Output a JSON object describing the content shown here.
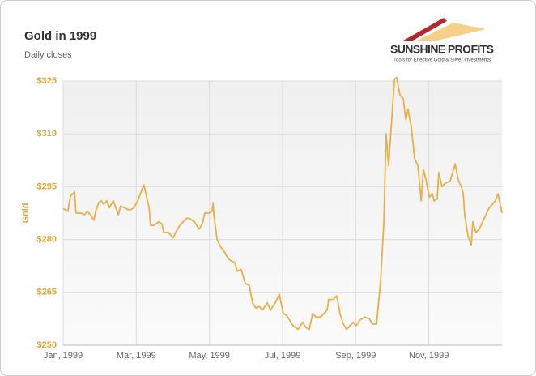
{
  "logo": {
    "name": "SUNSHINE PROFITS",
    "tagline": "Tools for Effective Gold & Silver Investments"
  },
  "chart_data": {
    "type": "line",
    "title": "Gold in 1999",
    "subtitle": "Daily closes",
    "y_label": "Gold",
    "x": [
      0,
      0.13,
      0.2,
      0.31,
      0.35,
      0.49,
      0.58,
      0.66,
      0.75,
      0.84,
      0.89,
      0.97,
      1.04,
      1.11,
      1.2,
      1.26,
      1.37,
      1.51,
      1.57,
      1.68,
      1.77,
      1.86,
      1.93,
      2.04,
      2.15,
      2.21,
      2.35,
      2.39,
      2.48,
      2.61,
      2.7,
      2.75,
      2.88,
      3.01,
      3.1,
      3.19,
      3.28,
      3.37,
      3.45,
      3.59,
      3.72,
      3.81,
      3.87,
      3.99,
      4.07,
      4.1,
      4.12,
      4.21,
      4.3,
      4.38,
      4.49,
      4.58,
      4.69,
      4.76,
      4.87,
      4.98,
      5.09,
      5.18,
      5.27,
      5.36,
      5.45,
      5.58,
      5.67,
      5.8,
      5.91,
      6.02,
      6.11,
      6.2,
      6.29,
      6.42,
      6.55,
      6.64,
      6.73,
      6.82,
      6.91,
      7.04,
      7.13,
      7.22,
      7.26,
      7.39,
      7.48,
      7.57,
      7.66,
      7.75,
      7.84,
      7.93,
      8.01,
      8.1,
      8.24,
      8.37,
      8.46,
      8.57,
      8.68,
      8.77,
      8.83,
      8.9,
      8.99,
      9.06,
      9.12,
      9.21,
      9.3,
      9.37,
      9.43,
      9.52,
      9.61,
      9.7,
      9.79,
      9.85,
      9.92,
      10.01,
      10.1,
      10.14,
      10.23,
      10.27,
      10.36,
      10.45,
      10.58,
      10.72,
      10.8,
      10.89,
      10.94,
      10.98,
      11.07,
      11.16,
      11.2,
      11.29,
      11.38,
      11.47,
      11.56,
      11.65,
      11.74,
      11.82,
      11.89,
      12.0
    ],
    "series": [
      {
        "name": "Gold",
        "color": "#e8b04a",
        "values": [
          288.8,
          288,
          292.3,
          293.5,
          287.5,
          287.5,
          287,
          288,
          287,
          285.5,
          288,
          290.5,
          291,
          290,
          291,
          289,
          291,
          287,
          289.5,
          289,
          288.5,
          288.5,
          289,
          291,
          294,
          295.5,
          289,
          284,
          284,
          285,
          284.5,
          282,
          282,
          280.5,
          282.5,
          284,
          285,
          286,
          286,
          285,
          283,
          284.5,
          287.5,
          287.5,
          288,
          290.5,
          287,
          280,
          278,
          277,
          275,
          274,
          273.5,
          271,
          271.5,
          267.5,
          267,
          262,
          260.5,
          261,
          260,
          262,
          260,
          262,
          264.5,
          259,
          258.5,
          257,
          255.5,
          254.5,
          256.5,
          255,
          254.5,
          259,
          258,
          258,
          259,
          260,
          263,
          263,
          264,
          259,
          256,
          254.5,
          255.5,
          256.5,
          255.5,
          257,
          258,
          257.5,
          256,
          256,
          268,
          285,
          310,
          301,
          315,
          325.5,
          326,
          321,
          320,
          314,
          317,
          312,
          303,
          301,
          291,
          300,
          297,
          292,
          293,
          291,
          291.5,
          299,
          295,
          296,
          296.5,
          301.5,
          297,
          295,
          293,
          287,
          281,
          278.5,
          285,
          282,
          283,
          285,
          287,
          289,
          290,
          291,
          293,
          287.5
        ]
      }
    ],
    "xlim": [
      0,
      12
    ],
    "xticks": [
      {
        "value": 0,
        "label": "Jan, 1999"
      },
      {
        "value": 2,
        "label": "Mar, 1999"
      },
      {
        "value": 4,
        "label": "May, 1999"
      },
      {
        "value": 6,
        "label": "Jul, 1999"
      },
      {
        "value": 8,
        "label": "Sep, 1999"
      },
      {
        "value": 10,
        "label": "Nov, 1999"
      }
    ],
    "ylim": [
      250,
      325
    ],
    "yticks": [
      {
        "value": 250,
        "label": "$250"
      },
      {
        "value": 265,
        "label": "$265"
      },
      {
        "value": 280,
        "label": "$280"
      },
      {
        "value": 295,
        "label": "$295"
      },
      {
        "value": 310,
        "label": "$310"
      },
      {
        "value": 325,
        "label": "$325"
      }
    ],
    "grid": true
  }
}
